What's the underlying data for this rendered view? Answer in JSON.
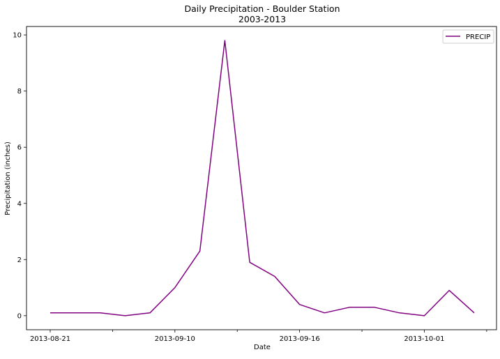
{
  "chart_data": {
    "type": "line",
    "title": "Daily Precipitation - Boulder Station",
    "subtitle": "2003-2013",
    "xlabel": "Date",
    "ylabel": "Precipitation (inches)",
    "x_tick_labels": [
      "2013-08-21",
      "2013-09-10",
      "2013-09-16",
      "2013-10-01"
    ],
    "x_tick_label_index": [
      0,
      5,
      10,
      15
    ],
    "y_ticks": [
      0,
      2,
      4,
      6,
      8,
      10
    ],
    "ylim": [
      -0.5,
      10.3
    ],
    "grid": false,
    "legend_position": "top-right",
    "series": [
      {
        "name": "PRECIP",
        "color": "#800080",
        "values": [
          0.1,
          0.1,
          0.1,
          0.0,
          0.1,
          1.0,
          2.3,
          9.8,
          1.9,
          1.4,
          0.4,
          0.1,
          0.3,
          0.3,
          0.1,
          0.0,
          0.9,
          0.1
        ]
      }
    ]
  }
}
